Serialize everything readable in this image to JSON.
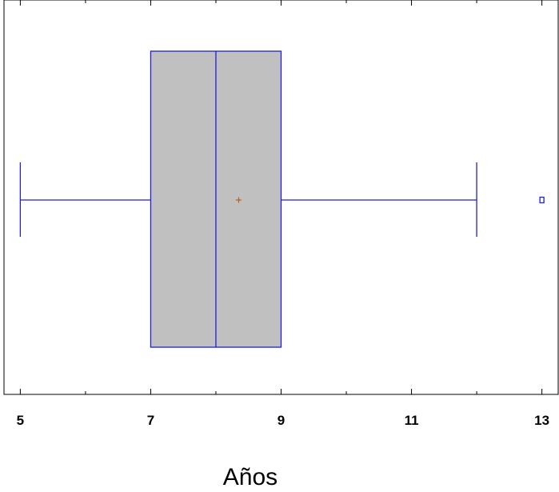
{
  "chart_data": {
    "type": "boxplot",
    "orientation": "horizontal",
    "title": "",
    "xlabel": "Años",
    "ylabel": "",
    "xlim": [
      4.75,
      13.25
    ],
    "xticks": [
      5,
      7,
      9,
      11,
      13
    ],
    "xtick_labels": [
      "5",
      "7",
      "9",
      "11",
      "13"
    ],
    "grid": false,
    "box": {
      "min": 5,
      "q1": 7,
      "median": 8,
      "q3": 9,
      "max": 12,
      "mean": 8.35,
      "outliers": [
        13
      ]
    },
    "colors": {
      "box_fill": "#c0c0c0",
      "lines": "#1f1fd6",
      "mean_marker": "#c05a1a",
      "axis": "#000000"
    }
  }
}
